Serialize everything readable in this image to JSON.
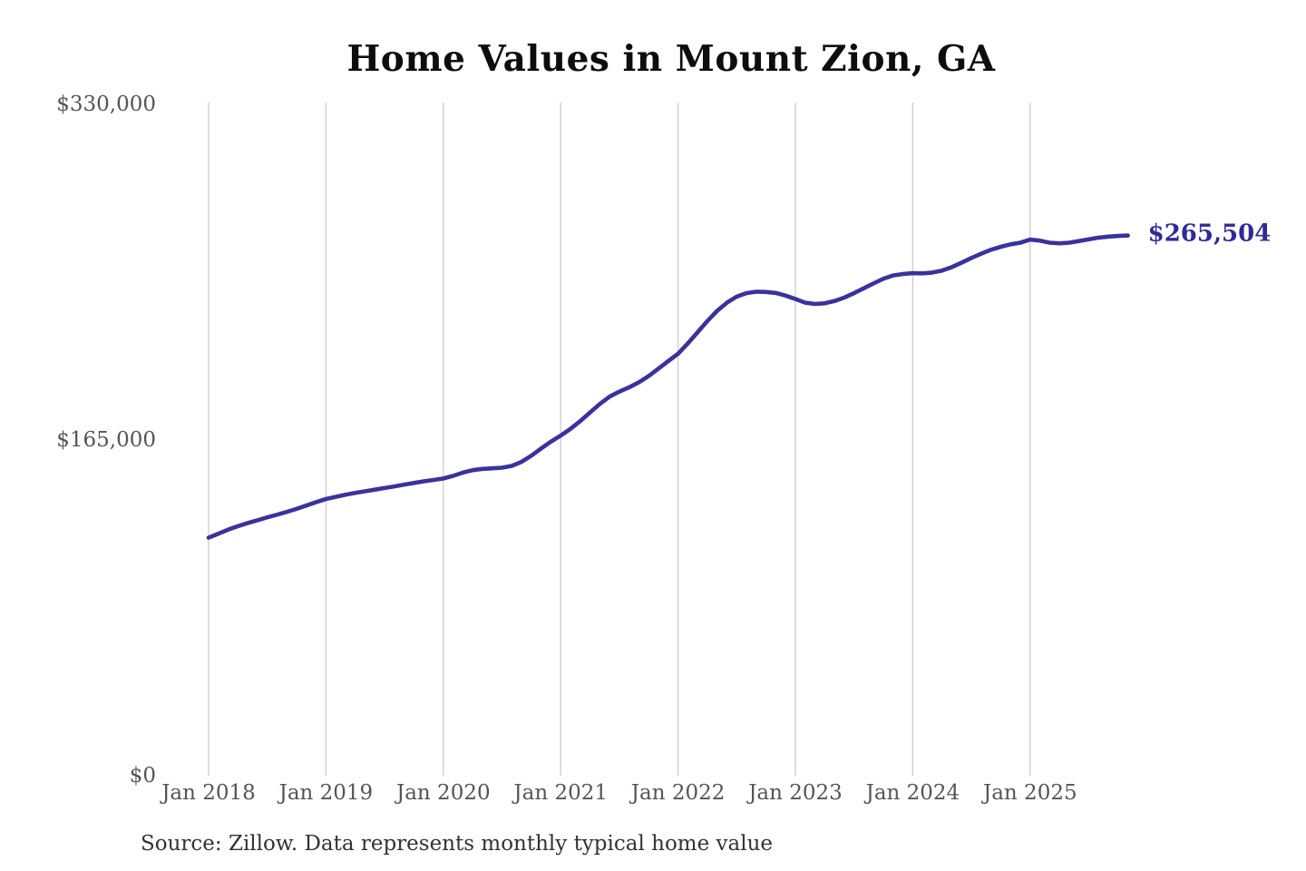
{
  "title": "Home Values in Mount Zion, GA",
  "source_note": "Source: Zillow. Data represents monthly typical home value",
  "colors": {
    "background": "#ffffff",
    "line": "#39329e",
    "end_label": "#2f2a9b",
    "grid": "#cccccc",
    "axis_text": "#555555",
    "title_text": "#0d0d0d",
    "source_text": "#333333"
  },
  "chart_data": {
    "type": "line",
    "title": "Home Values in Mount Zion, GA",
    "xlabel": "",
    "ylabel": "",
    "x_tick_labels": [
      "Jan 2018",
      "Jan 2019",
      "Jan 2020",
      "Jan 2021",
      "Jan 2022",
      "Jan 2023",
      "Jan 2024",
      "Jan 2025"
    ],
    "y_ticks": [
      0,
      165000,
      330000
    ],
    "y_tick_labels": [
      "$0",
      "$165,000",
      "$330,000"
    ],
    "ylim": [
      0,
      330000
    ],
    "grid": "vertical-only",
    "legend": "none",
    "end_value_label": "$265,504",
    "series": [
      {
        "name": "Monthly typical home value",
        "frequency": "monthly",
        "start": "Jan 2018",
        "end": "Nov 2025",
        "values": [
          117000,
          119000,
          121000,
          122700,
          124200,
          125600,
          127000,
          128300,
          129700,
          131200,
          132800,
          134500,
          136000,
          137100,
          138100,
          139000,
          139800,
          140600,
          141400,
          142200,
          143100,
          143900,
          144700,
          145400,
          146100,
          147400,
          149000,
          150200,
          150800,
          151100,
          151400,
          152300,
          154300,
          157300,
          160800,
          164200,
          167200,
          170500,
          174300,
          178500,
          182700,
          186300,
          188800,
          190900,
          193400,
          196500,
          200100,
          203800,
          207400,
          212500,
          218000,
          223500,
          228500,
          232500,
          235500,
          237200,
          237900,
          237800,
          237300,
          236000,
          234300,
          232500,
          231900,
          232200,
          233300,
          235000,
          237200,
          239600,
          242000,
          244300,
          245900,
          246600,
          247000,
          246900,
          247300,
          248300,
          250000,
          252200,
          254500,
          256600,
          258500,
          260000,
          261200,
          262000,
          263500,
          263000,
          262000,
          261700,
          262000,
          262800,
          263700,
          264500,
          265000,
          265300,
          265504
        ]
      }
    ]
  }
}
